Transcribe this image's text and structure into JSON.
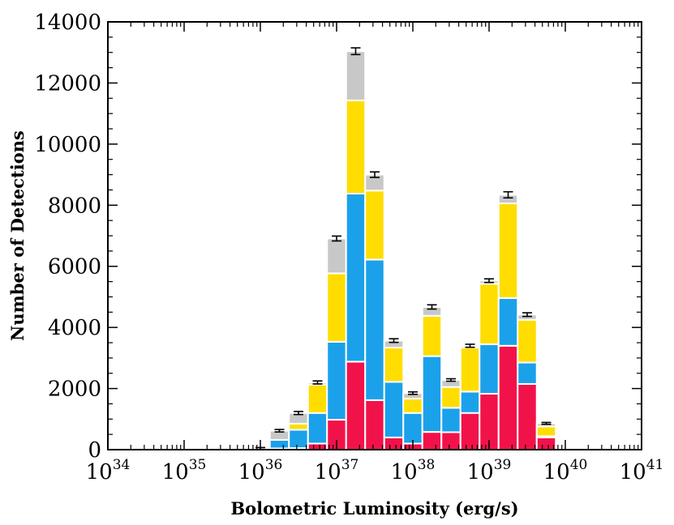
{
  "chart_data": {
    "type": "bar",
    "stacked": true,
    "xlabel": "Bolometric Luminosity (erg/s)",
    "ylabel": "Number of Detections",
    "x_scale": "log",
    "xlim": [
      1e+34,
      1e+41
    ],
    "ylim": [
      0,
      14000
    ],
    "y_ticks": [
      "0",
      "2000",
      "4000",
      "6000",
      "8000",
      "10000",
      "12000",
      "14000"
    ],
    "x_tick_base": "10",
    "x_tick_exponents": [
      "34",
      "35",
      "36",
      "37",
      "38",
      "39",
      "40",
      "41"
    ],
    "bin_log_edges": [
      35.875,
      36.125,
      36.375,
      36.625,
      36.875,
      37.125,
      37.375,
      37.625,
      37.875,
      38.125,
      38.375,
      38.625,
      38.875,
      39.125,
      39.375,
      39.625,
      39.875
    ],
    "series": [
      {
        "color": "#f2124a",
        "values": [
          10,
          40,
          50,
          200,
          980,
          2880,
          1620,
          400,
          200,
          580,
          570,
          1200,
          1830,
          3400,
          2150,
          400,
          20
        ]
      },
      {
        "color": "#1ba1ea",
        "values": [
          10,
          280,
          600,
          1000,
          2550,
          5500,
          4600,
          1820,
          1000,
          2480,
          800,
          700,
          1620,
          1560,
          700,
          40,
          10
        ]
      },
      {
        "color": "#ffdd00",
        "values": [
          0,
          0,
          200,
          930,
          2240,
          3050,
          2260,
          1120,
          470,
          1320,
          680,
          1440,
          1980,
          3100,
          1400,
          320,
          10
        ]
      },
      {
        "color": "#c8c8c8",
        "values": [
          20,
          300,
          350,
          70,
          1140,
          1610,
          520,
          230,
          180,
          290,
          230,
          60,
          100,
          280,
          170,
          100,
          20
        ]
      }
    ],
    "error_bars": [
      30,
      40,
      50,
      50,
      80,
      110,
      90,
      60,
      40,
      70,
      40,
      50,
      60,
      100,
      60,
      30,
      10
    ],
    "colors": {
      "axis": "#000000",
      "error_bar": "#000000",
      "bar_edge": "#ffffff"
    }
  }
}
